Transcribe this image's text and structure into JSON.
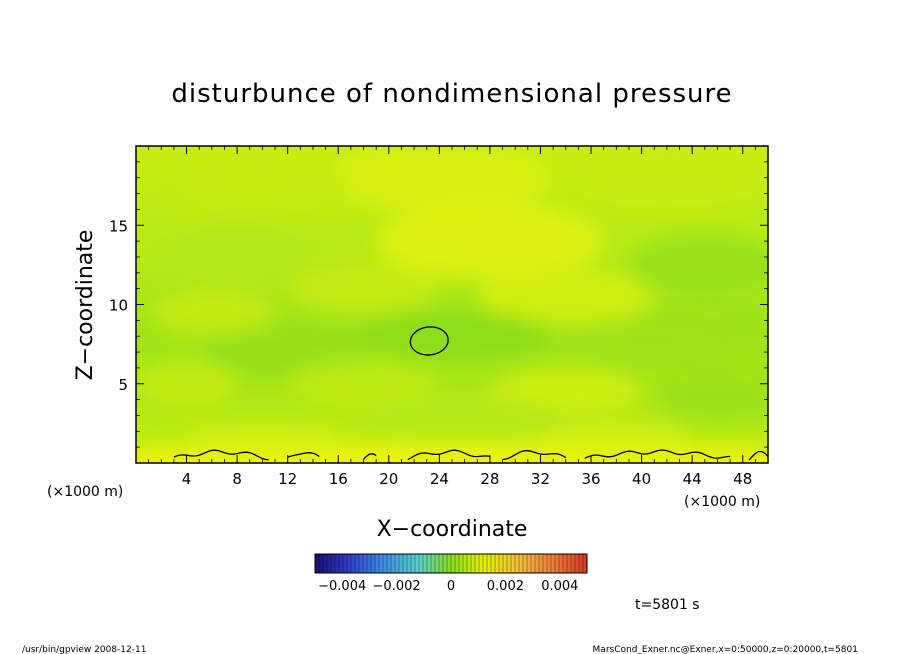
{
  "chart_data": {
    "type": "heatmap",
    "title": "disturbunce of nondimensional pressure",
    "xlabel": "X−coordinate",
    "ylabel": "Z−coordinate",
    "x_unit_left": "(×1000 m)",
    "x_unit_right": "(×1000 m)",
    "xlim": [
      0,
      50
    ],
    "ylim": [
      0,
      20
    ],
    "x_ticks": [
      4,
      8,
      12,
      16,
      20,
      24,
      28,
      32,
      36,
      40,
      44,
      48
    ],
    "x_tick_labels": [
      "4",
      "8",
      "12",
      "16",
      "20",
      "24",
      "28",
      "32",
      "36",
      "40",
      "44",
      "48"
    ],
    "y_ticks": [
      5,
      10,
      15
    ],
    "y_tick_labels": [
      "5",
      "10",
      "15"
    ],
    "colorbar": {
      "range": [
        -0.005,
        0.005
      ],
      "tick_values": [
        -0.004,
        -0.002,
        0,
        0.002,
        0.004
      ],
      "tick_labels": [
        "−0.004",
        "−0.002",
        "0",
        "0.002",
        "0.004"
      ]
    },
    "value_range_shown": "approx -0.0005 to 0.0007 (green to yellow)",
    "contours": [
      {
        "level": "closed contour",
        "center": [
          23.2,
          7.7
        ],
        "rx": 1.5,
        "ry": 0.55
      },
      {
        "level": "near-surface contour",
        "z_approx": 0.5
      }
    ]
  },
  "annotations": {
    "time": "t=5801 s",
    "footer_left": "/usr/bin/gpview   2008-12-11",
    "footer_right": "MarsCond_Exner.nc@Exner,x=0:50000,z=0:20000,t=5801"
  },
  "colors": {
    "field_low": "#7fdc10",
    "field_high": "#e6f20a",
    "colorbar_negative_end": "#1a0f6e",
    "colorbar_positive_end": "#d23a28"
  }
}
